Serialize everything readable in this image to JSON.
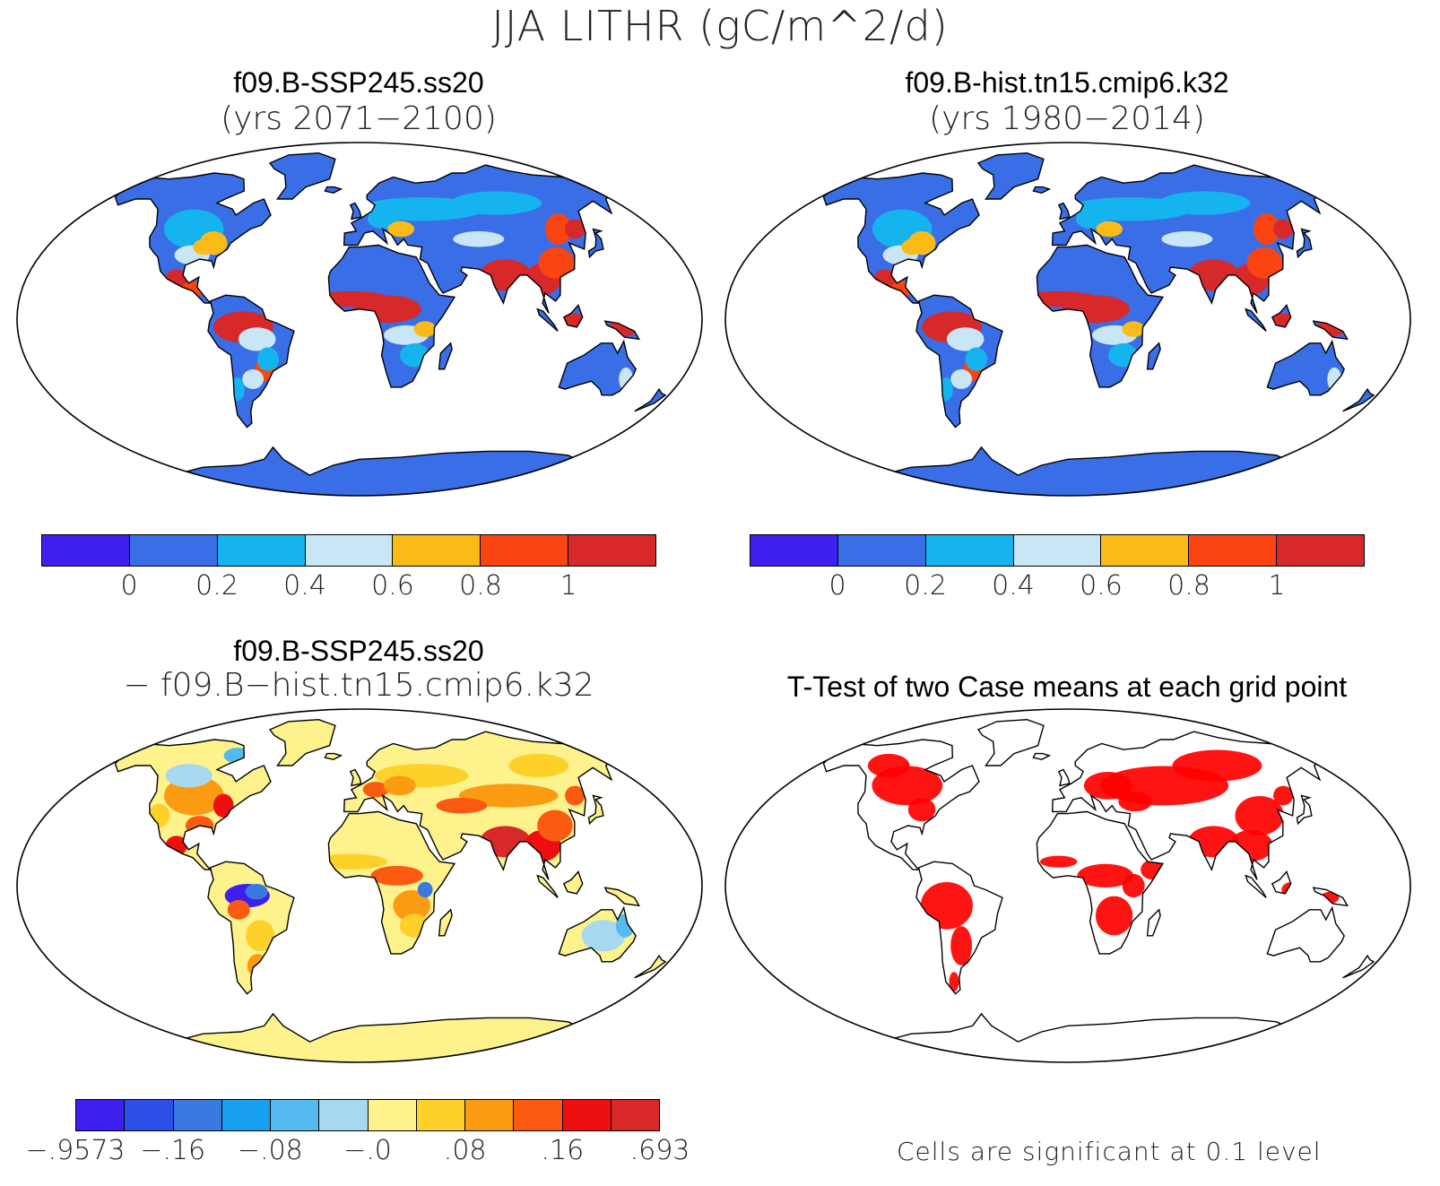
{
  "title": "JJA LITHR (gC/m^2/d)",
  "panels": {
    "case": {
      "line1": "f09.B-SSP245.ss20",
      "line2": "(yrs 2071−2100)"
    },
    "control": {
      "line1": "f09.B-hist.tn15.cmip6.k32",
      "line2": "(yrs 1980−2014)"
    },
    "difference": {
      "line1": "f09.B-SSP245.ss20",
      "line2": "− f09.B−hist.tn15.cmip6.k32"
    },
    "ttest": {
      "line1": "T-Test of two Case means at each grid point",
      "note": "Cells are significant at 0.1 level"
    }
  },
  "colorbar_abs": {
    "colors": [
      "#3d1ff0",
      "#3a6ee6",
      "#16b4ef",
      "#c8e6f5",
      "#fbbb17",
      "#fa4411",
      "#d7282a"
    ],
    "labels": [
      "0",
      "0.2",
      "0.4",
      "0.6",
      "0.8",
      "1"
    ]
  },
  "colorbar_diff": {
    "colors": [
      "#3d1ff0",
      "#2c4fe8",
      "#3a7ae0",
      "#16a0ef",
      "#55baf0",
      "#a8d8f0",
      "#fdf28c",
      "#fdd02a",
      "#fb9b12",
      "#fa5a12",
      "#ee1010",
      "#d7282a"
    ],
    "labels": [
      "−.9573",
      "−.16",
      "−.08",
      "−.0",
      ".08",
      ".16",
      ".693"
    ]
  },
  "map_colors": {
    "ocean": "#ffffff",
    "coast": "#000000",
    "significant": "#ff0000"
  }
}
